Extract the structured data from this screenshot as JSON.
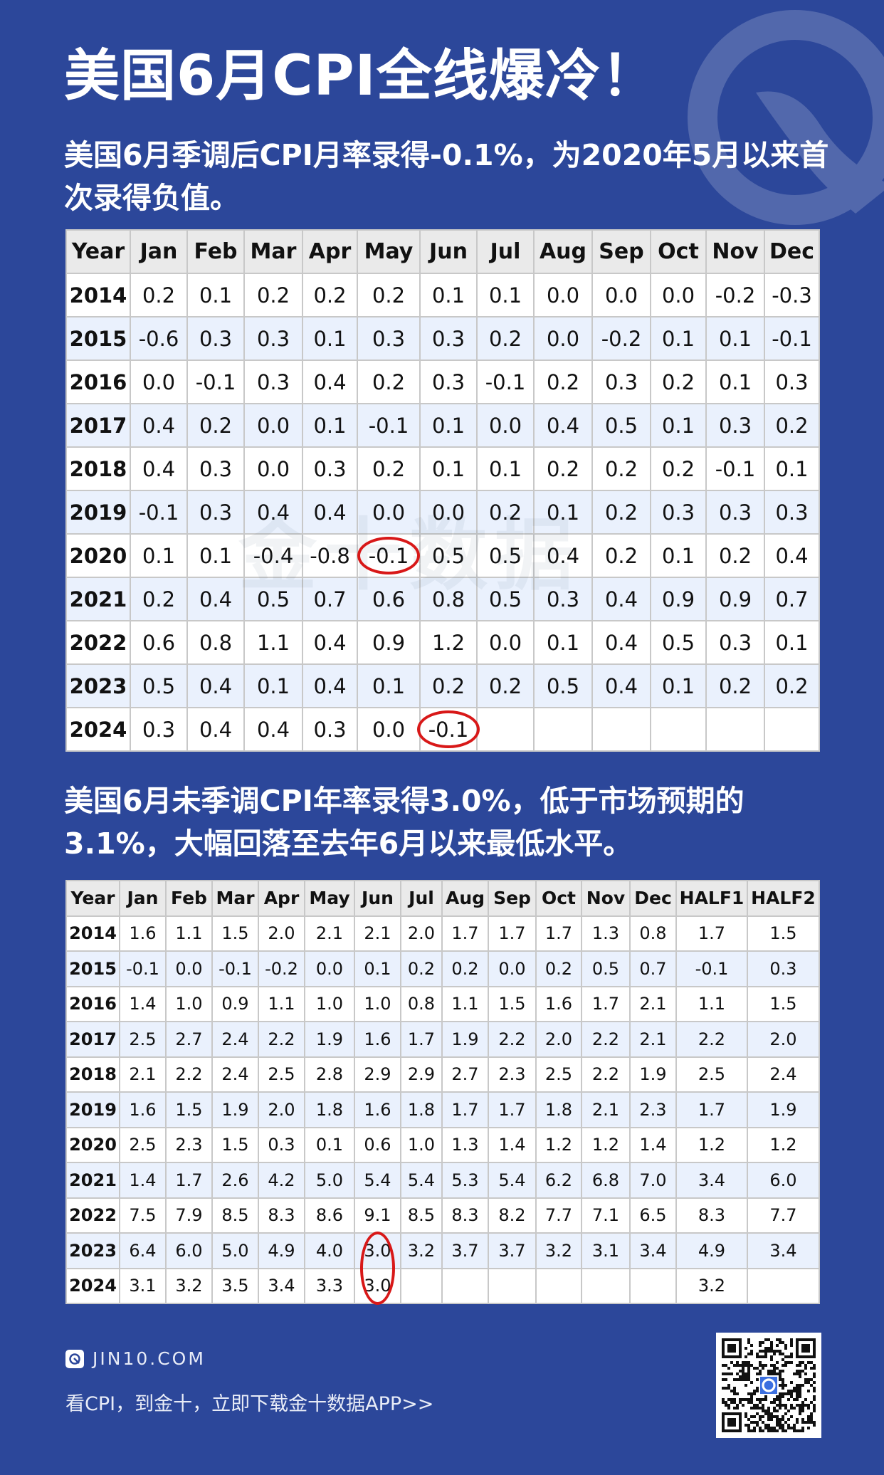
{
  "header": {
    "title": "美国6月CPI全线爆冷！",
    "subtitle1": "美国6月季调后CPI月率录得-0.1%，为2020年5月以来首次录得负值。",
    "subtitle2": "美国6月未季调CPI年率录得3.0%，低于市场预期的3.1%，大幅回落至去年6月以来最低水平。"
  },
  "table1": {
    "headers": [
      "Year",
      "Jan",
      "Feb",
      "Mar",
      "Apr",
      "May",
      "Jun",
      "Jul",
      "Aug",
      "Sep",
      "Oct",
      "Nov",
      "Dec"
    ],
    "rows": [
      [
        "2014",
        "0.2",
        "0.1",
        "0.2",
        "0.2",
        "0.2",
        "0.1",
        "0.1",
        "0.0",
        "0.0",
        "0.0",
        "-0.2",
        "-0.3"
      ],
      [
        "2015",
        "-0.6",
        "0.3",
        "0.3",
        "0.1",
        "0.3",
        "0.3",
        "0.2",
        "0.0",
        "-0.2",
        "0.1",
        "0.1",
        "-0.1"
      ],
      [
        "2016",
        "0.0",
        "-0.1",
        "0.3",
        "0.4",
        "0.2",
        "0.3",
        "-0.1",
        "0.2",
        "0.3",
        "0.2",
        "0.1",
        "0.3"
      ],
      [
        "2017",
        "0.4",
        "0.2",
        "0.0",
        "0.1",
        "-0.1",
        "0.1",
        "0.0",
        "0.4",
        "0.5",
        "0.1",
        "0.3",
        "0.2"
      ],
      [
        "2018",
        "0.4",
        "0.3",
        "0.0",
        "0.3",
        "0.2",
        "0.1",
        "0.1",
        "0.2",
        "0.2",
        "0.2",
        "-0.1",
        "0.1"
      ],
      [
        "2019",
        "-0.1",
        "0.3",
        "0.4",
        "0.4",
        "0.0",
        "0.0",
        "0.2",
        "0.1",
        "0.2",
        "0.3",
        "0.3",
        "0.3"
      ],
      [
        "2020",
        "0.1",
        "0.1",
        "-0.4",
        "-0.8",
        "-0.1",
        "0.5",
        "0.5",
        "0.4",
        "0.2",
        "0.1",
        "0.2",
        "0.4"
      ],
      [
        "2021",
        "0.2",
        "0.4",
        "0.5",
        "0.7",
        "0.6",
        "0.8",
        "0.5",
        "0.3",
        "0.4",
        "0.9",
        "0.9",
        "0.7"
      ],
      [
        "2022",
        "0.6",
        "0.8",
        "1.1",
        "0.4",
        "0.9",
        "1.2",
        "0.0",
        "0.1",
        "0.4",
        "0.5",
        "0.3",
        "0.1"
      ],
      [
        "2023",
        "0.5",
        "0.4",
        "0.1",
        "0.4",
        "0.1",
        "0.2",
        "0.2",
        "0.5",
        "0.4",
        "0.1",
        "0.2",
        "0.2"
      ],
      [
        "2024",
        "0.3",
        "0.4",
        "0.4",
        "0.3",
        "0.0",
        "-0.1",
        "",
        "",
        "",
        "",
        "",
        ""
      ]
    ]
  },
  "table2": {
    "headers": [
      "Year",
      "Jan",
      "Feb",
      "Mar",
      "Apr",
      "May",
      "Jun",
      "Jul",
      "Aug",
      "Sep",
      "Oct",
      "Nov",
      "Dec",
      "HALF1",
      "HALF2"
    ],
    "rows": [
      [
        "2014",
        "1.6",
        "1.1",
        "1.5",
        "2.0",
        "2.1",
        "2.1",
        "2.0",
        "1.7",
        "1.7",
        "1.7",
        "1.3",
        "0.8",
        "1.7",
        "1.5"
      ],
      [
        "2015",
        "-0.1",
        "0.0",
        "-0.1",
        "-0.2",
        "0.0",
        "0.1",
        "0.2",
        "0.2",
        "0.0",
        "0.2",
        "0.5",
        "0.7",
        "-0.1",
        "0.3"
      ],
      [
        "2016",
        "1.4",
        "1.0",
        "0.9",
        "1.1",
        "1.0",
        "1.0",
        "0.8",
        "1.1",
        "1.5",
        "1.6",
        "1.7",
        "2.1",
        "1.1",
        "1.5"
      ],
      [
        "2017",
        "2.5",
        "2.7",
        "2.4",
        "2.2",
        "1.9",
        "1.6",
        "1.7",
        "1.9",
        "2.2",
        "2.0",
        "2.2",
        "2.1",
        "2.2",
        "2.0"
      ],
      [
        "2018",
        "2.1",
        "2.2",
        "2.4",
        "2.5",
        "2.8",
        "2.9",
        "2.9",
        "2.7",
        "2.3",
        "2.5",
        "2.2",
        "1.9",
        "2.5",
        "2.4"
      ],
      [
        "2019",
        "1.6",
        "1.5",
        "1.9",
        "2.0",
        "1.8",
        "1.6",
        "1.8",
        "1.7",
        "1.7",
        "1.8",
        "2.1",
        "2.3",
        "1.7",
        "1.9"
      ],
      [
        "2020",
        "2.5",
        "2.3",
        "1.5",
        "0.3",
        "0.1",
        "0.6",
        "1.0",
        "1.3",
        "1.4",
        "1.2",
        "1.2",
        "1.4",
        "1.2",
        "1.2"
      ],
      [
        "2021",
        "1.4",
        "1.7",
        "2.6",
        "4.2",
        "5.0",
        "5.4",
        "5.4",
        "5.3",
        "5.4",
        "6.2",
        "6.8",
        "7.0",
        "3.4",
        "6.0"
      ],
      [
        "2022",
        "7.5",
        "7.9",
        "8.5",
        "8.3",
        "8.6",
        "9.1",
        "8.5",
        "8.3",
        "8.2",
        "7.7",
        "7.1",
        "6.5",
        "8.3",
        "7.7"
      ],
      [
        "2023",
        "6.4",
        "6.0",
        "5.0",
        "4.9",
        "4.0",
        "3.0",
        "3.2",
        "3.7",
        "3.7",
        "3.2",
        "3.1",
        "3.4",
        "4.9",
        "3.4"
      ],
      [
        "2024",
        "3.1",
        "3.2",
        "3.5",
        "3.4",
        "3.3",
        "3.0",
        "",
        "",
        "",
        "",
        "",
        "",
        "3.2",
        ""
      ]
    ]
  },
  "watermark": "金十数据",
  "footer": {
    "site": "JIN10.COM",
    "cta": "看CPI，到金十，立即下载金十数据APP>>"
  },
  "colors": {
    "background": "#2c479a",
    "highlight_ring": "#d81818",
    "alt_row": "#eaf1fd"
  }
}
